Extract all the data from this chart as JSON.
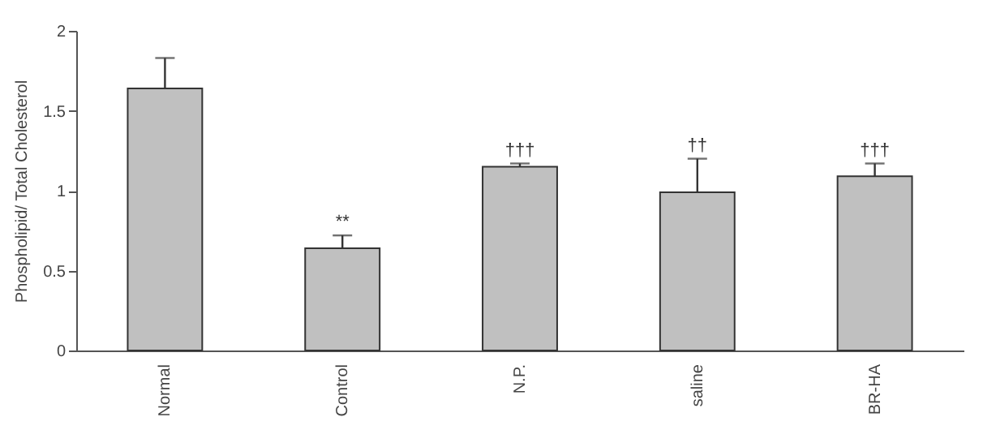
{
  "chart_data": {
    "type": "bar",
    "ylabel": "Phospholipid/ Total Cholesterol",
    "categories": [
      "Normal",
      "Control",
      "N.P.",
      "saline",
      "BR-HA"
    ],
    "values": [
      1.64,
      0.64,
      1.15,
      0.99,
      1.09
    ],
    "errors": [
      [
        1.64,
        1.83
      ],
      [
        0.64,
        0.72
      ],
      [
        1.15,
        1.17
      ],
      [
        0.99,
        1.2
      ],
      [
        1.09,
        1.17
      ]
    ],
    "color": "#c0c0c0",
    "ylim": [
      0,
      2
    ],
    "yticks": [
      0,
      0.5,
      1,
      1.5,
      2
    ],
    "grid": false,
    "annotations": [
      {
        "text": "**",
        "x": "Control",
        "y": 0.72
      },
      {
        "text": "†††",
        "x": "N.P.",
        "y": 1.17
      },
      {
        "text": "††",
        "x": "saline",
        "y": 1.2
      },
      {
        "text": "†††",
        "x": "BR-HA",
        "y": 1.17
      }
    ]
  }
}
